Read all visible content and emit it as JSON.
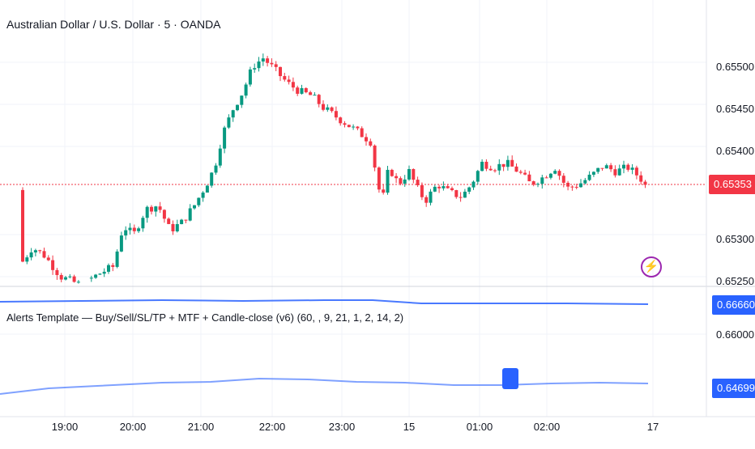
{
  "header": {
    "title": "Australian Dollar / U.S. Dollar · 5 · OANDA"
  },
  "indicator": {
    "label": "Alerts Template — Buy/Sell/SL/TP + MTF + Candle-close (v6) (60, , 9, 21, 1, 2, 14, 2)"
  },
  "price_axis": {
    "ticks": [
      "0.65500",
      "0.65450",
      "0.65400",
      "0.65300",
      "0.65250"
    ]
  },
  "indicator_axis": {
    "ticks": [
      "0.66000"
    ]
  },
  "time_axis": {
    "ticks": [
      "19:00",
      "20:00",
      "21:00",
      "22:00",
      "23:00",
      "15",
      "01:00",
      "02:00",
      "17"
    ]
  },
  "tags": {
    "last_price": "0.65353",
    "upper_line": "0.66660",
    "lower_line": "0.64699"
  },
  "icons": {
    "alert": "lightning-bolt-icon"
  },
  "colors": {
    "up": "#089981",
    "down": "#f23645",
    "indicator_line": "#2962ff",
    "last_price_line": "#f23645"
  },
  "chart_data": {
    "type": "candlestick",
    "timeframe_minutes": 5,
    "y_range": [
      0.65233,
      0.65535
    ],
    "last_price": 0.65353,
    "indicator_series": [
      {
        "values_note": "",
        "level_last": 0.6666
      },
      {
        "level_last": 0.64699
      }
    ]
  }
}
